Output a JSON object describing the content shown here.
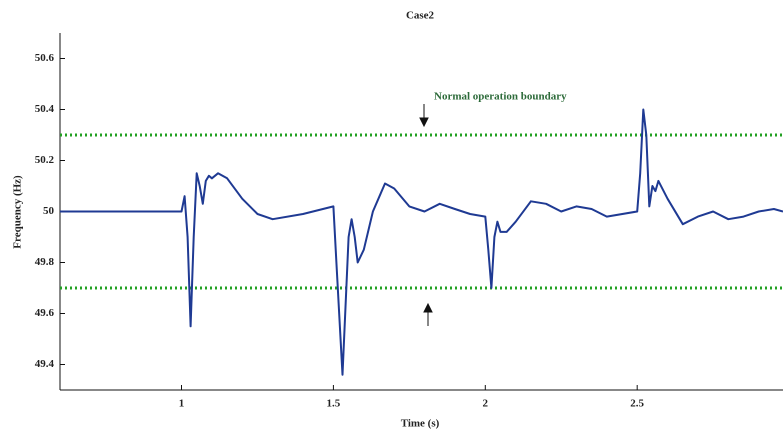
{
  "chart_data": {
    "type": "line",
    "title": "Case2",
    "xlabel": "Time (s)",
    "ylabel": "Frequency (Hz)",
    "annotation": "Normal operation boundary",
    "xlim": [
      0.6,
      2.98
    ],
    "ylim": [
      49.3,
      50.7
    ],
    "xticks": [
      1,
      1.5,
      2,
      2.5
    ],
    "yticks": [
      49.4,
      49.6,
      49.8,
      50,
      50.2,
      50.4,
      50.6
    ],
    "boundaries": [
      50.3,
      49.7
    ],
    "boundary_color": "#22a022",
    "series": [
      {
        "color": "#1f3a93",
        "x": [
          0.6,
          1.0,
          1.01,
          1.02,
          1.03,
          1.04,
          1.05,
          1.06,
          1.07,
          1.08,
          1.09,
          1.1,
          1.12,
          1.15,
          1.2,
          1.25,
          1.3,
          1.4,
          1.5,
          1.51,
          1.53,
          1.55,
          1.56,
          1.57,
          1.58,
          1.6,
          1.63,
          1.67,
          1.7,
          1.75,
          1.8,
          1.85,
          1.9,
          1.95,
          2.0,
          2.01,
          2.02,
          2.03,
          2.04,
          2.05,
          2.07,
          2.1,
          2.15,
          2.2,
          2.25,
          2.3,
          2.35,
          2.4,
          2.5,
          2.51,
          2.52,
          2.53,
          2.54,
          2.55,
          2.56,
          2.57,
          2.6,
          2.65,
          2.7,
          2.75,
          2.8,
          2.85,
          2.9,
          2.95,
          2.98
        ],
        "values": [
          50.0,
          50.0,
          50.06,
          49.9,
          49.55,
          49.9,
          50.15,
          50.1,
          50.03,
          50.12,
          50.14,
          50.13,
          50.15,
          50.13,
          50.05,
          49.99,
          49.97,
          49.99,
          50.02,
          49.8,
          49.36,
          49.9,
          49.97,
          49.9,
          49.8,
          49.85,
          50.0,
          50.11,
          50.09,
          50.02,
          50.0,
          50.03,
          50.01,
          49.99,
          49.98,
          49.85,
          49.7,
          49.9,
          49.96,
          49.92,
          49.92,
          49.96,
          50.04,
          50.03,
          50.0,
          50.02,
          50.01,
          49.98,
          50.0,
          50.15,
          50.4,
          50.3,
          50.02,
          50.1,
          50.08,
          50.12,
          50.05,
          49.95,
          49.98,
          50.0,
          49.97,
          49.98,
          50.0,
          50.01,
          50.0
        ]
      }
    ]
  }
}
